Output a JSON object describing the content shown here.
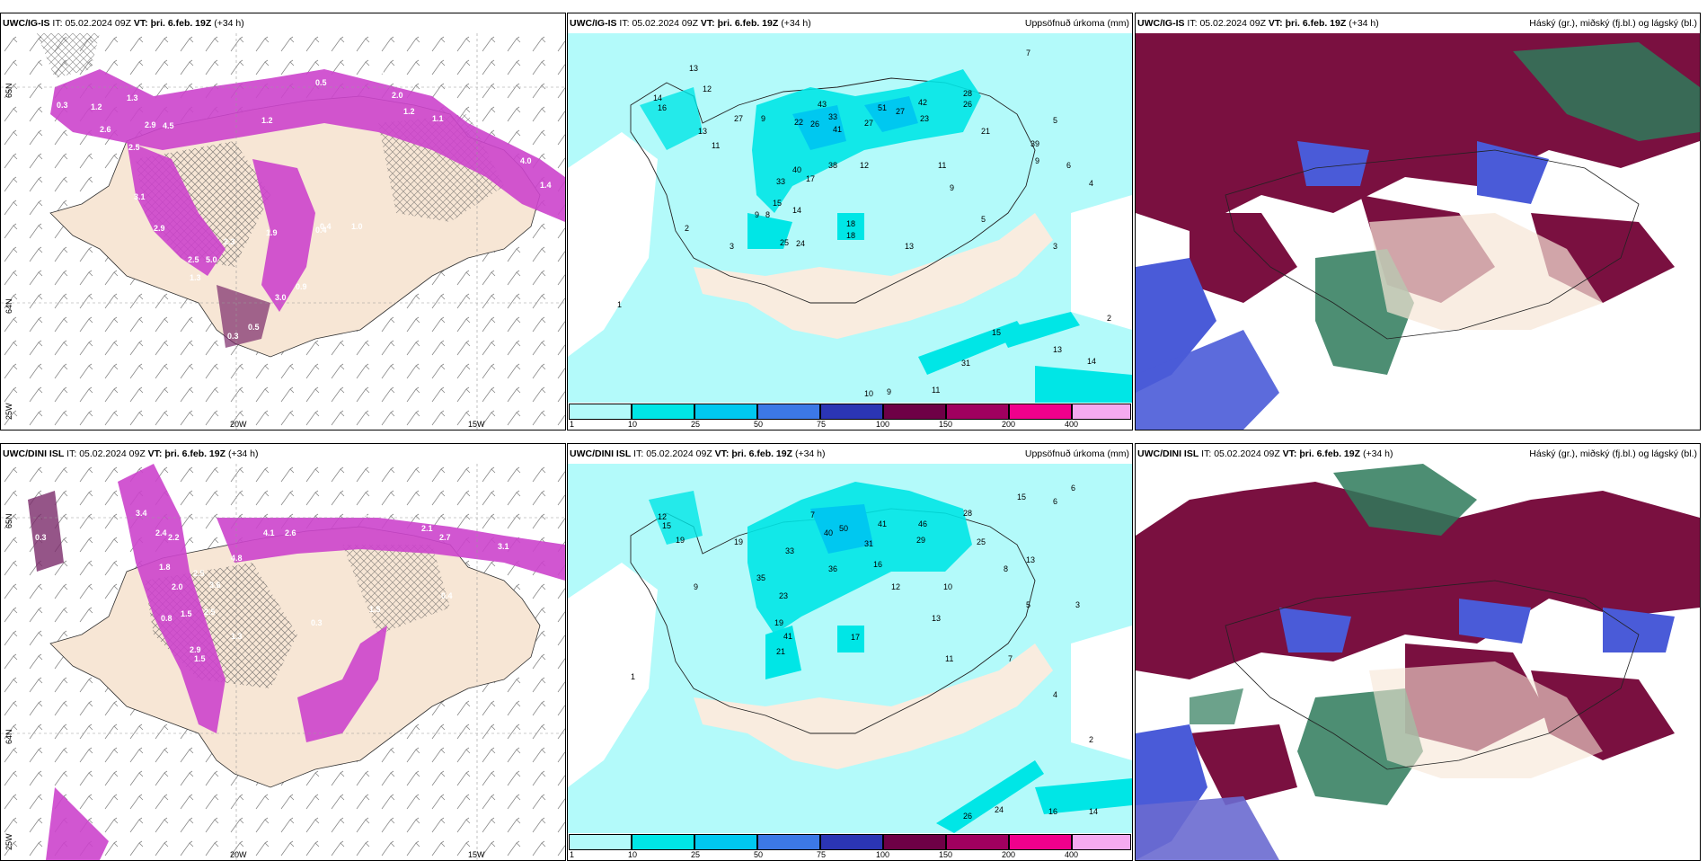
{
  "rows": [
    {
      "model": "UWC/IG-IS",
      "panels": [
        {
          "model": "UWC/IG-IS",
          "it_label": "IT:",
          "it_value": "05.02.2024 09Z",
          "vt_label": "VT:",
          "vt_value": "þri. 6.feb. 19Z",
          "lead": "(+34 h)",
          "right": ""
        },
        {
          "model": "UWC/IG-IS",
          "it_label": "IT:",
          "it_value": "05.02.2024 09Z",
          "vt_label": "VT:",
          "vt_value": "þri. 6.feb. 19Z",
          "lead": "(+34 h)",
          "right": "Uppsöfnuð úrkoma (mm)"
        },
        {
          "model": "UWC/IG-IS",
          "it_label": "IT:",
          "it_value": "05.02.2024 09Z",
          "vt_label": "VT:",
          "vt_value": "þri. 6.feb. 19Z",
          "lead": "(+34 h)",
          "right": "Háský (gr.), miðský (fj.bl.) og lágský (bl.)"
        }
      ],
      "lon_labels": [
        "20W",
        "15W"
      ],
      "lat_labels": [
        "65N",
        "64N",
        "25W"
      ],
      "precip_values": [
        "0.4",
        "0.3",
        "1.3",
        "1.2",
        "2.6",
        "2.9",
        "4.5",
        "2.5",
        "3.1",
        "2.9",
        "2.5",
        "5.0",
        "1.3",
        "1.9",
        "2.3",
        "0.9",
        "3.0",
        "0.5",
        "0.3",
        "0.4",
        "0.5",
        "1.2",
        "2.0",
        "1.2",
        "1.1",
        "4.0",
        "1.4",
        "0.1",
        "0.4",
        "1.0"
      ],
      "accum_values": [
        "13",
        "12",
        "14",
        "16",
        "27",
        "11",
        "13",
        "9",
        "22",
        "26",
        "43",
        "33",
        "41",
        "27",
        "51",
        "27",
        "42",
        "23",
        "28",
        "26",
        "39",
        "21",
        "18",
        "40",
        "38",
        "17",
        "15",
        "14",
        "33",
        "12",
        "11",
        "9",
        "9",
        "8",
        "9",
        "5",
        "24",
        "25",
        "18",
        "13",
        "2",
        "1",
        "3",
        "31",
        "15",
        "13",
        "14",
        "9",
        "10",
        "11",
        "7",
        "5",
        "6",
        "4",
        "3",
        "2"
      ]
    },
    {
      "model": "UWC/DINI ISL",
      "panels": [
        {
          "model": "UWC/DINI ISL",
          "it_label": "IT:",
          "it_value": "05.02.2024 09Z",
          "vt_label": "VT:",
          "vt_value": "þri. 6.feb. 19Z",
          "lead": "(+34 h)",
          "right": ""
        },
        {
          "model": "UWC/DINI ISL",
          "it_label": "IT:",
          "it_value": "05.02.2024 09Z",
          "vt_label": "VT:",
          "vt_value": "þri. 6.feb. 19Z",
          "lead": "(+34 h)",
          "right": "Uppsöfnuð úrkoma (mm)"
        },
        {
          "model": "UWC/DINI ISL",
          "it_label": "IT:",
          "it_value": "05.02.2024 09Z",
          "vt_label": "VT:",
          "vt_value": "þri. 6.feb. 19Z",
          "lead": "(+34 h)",
          "right": "Háský (gr.), miðský (fj.bl.) og lágský (bl.)"
        }
      ],
      "lon_labels": [
        "20W",
        "15W"
      ],
      "lat_labels": [
        "65N",
        "64N",
        "25W"
      ],
      "precip_values": [
        "0.3",
        "3.4",
        "2.4",
        "2.2",
        "1.8",
        "2.5",
        "3.6",
        "2.0",
        "4.8",
        "4.1",
        "2.6",
        "1.5",
        "2.9",
        "2.5",
        "1.3",
        "1.5",
        "0.8",
        "2.1",
        "2.7",
        "3.1",
        "0.3",
        "0.5",
        "1.0",
        "0.8",
        "1.5",
        "0.4"
      ],
      "accum_values": [
        "12",
        "15",
        "19",
        "19",
        "50",
        "40",
        "33",
        "31",
        "41",
        "46",
        "29",
        "28",
        "25",
        "35",
        "36",
        "16",
        "23",
        "41",
        "19",
        "21",
        "17",
        "15",
        "12",
        "13",
        "10",
        "13",
        "11",
        "5",
        "6",
        "7",
        "3",
        "2",
        "1",
        "4",
        "26",
        "24",
        "16",
        "14",
        "7",
        "9",
        "8",
        "6"
      ]
    }
  ],
  "legend": {
    "ticks": [
      "1",
      "10",
      "25",
      "50",
      "75",
      "100",
      "150",
      "200",
      "400"
    ],
    "colors": [
      "#b3fafa",
      "#00e6e6",
      "#00c8f0",
      "#3c78e6",
      "#2b35b4",
      "#6e0046",
      "#a0005f",
      "#f0008c",
      "#f5aaf0"
    ]
  },
  "colors": {
    "land": "#f7e6d5",
    "ocean_bg": "#ffffff",
    "accum_bg": "#b3fafa",
    "precip_magenta": "#cc44cc",
    "cloud_high": "#7a1040",
    "cloud_mid": "#2e7a5a",
    "cloud_low": "#4a5bd8"
  }
}
